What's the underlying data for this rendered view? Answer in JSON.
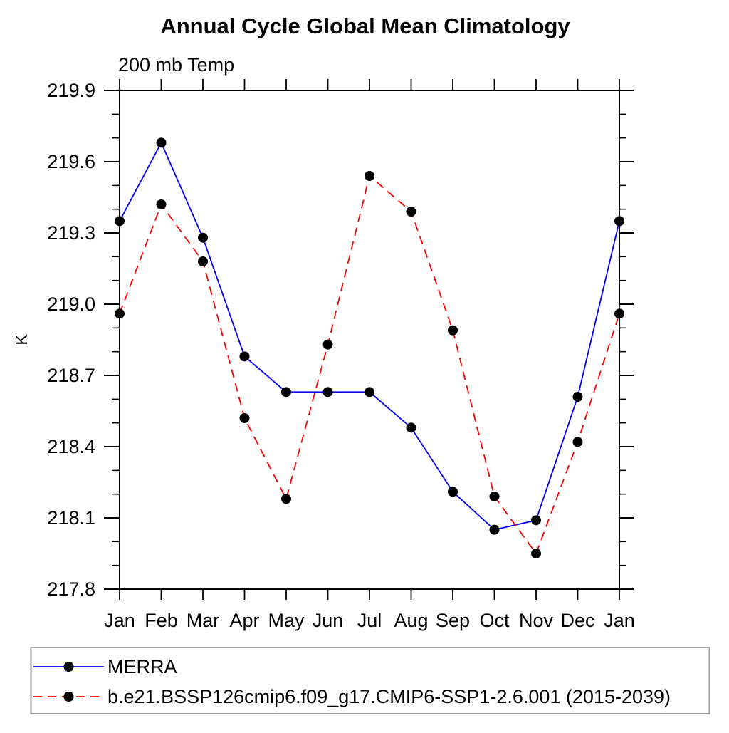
{
  "page": {
    "background": "#ffffff"
  },
  "chart_data": {
    "type": "line",
    "title": "Annual Cycle Global Mean Climatology",
    "subtitle": "200 mb Temp",
    "xlabel": "",
    "ylabel": "K",
    "categories": [
      "Jan",
      "Feb",
      "Mar",
      "Apr",
      "May",
      "Jun",
      "Jul",
      "Aug",
      "Sep",
      "Oct",
      "Nov",
      "Dec",
      "Jan"
    ],
    "series": [
      {
        "name": "MERRA",
        "color": "#0000ff",
        "line_style": "solid",
        "marker": "filled-circle",
        "marker_color": "#000000",
        "values": [
          219.35,
          219.68,
          219.28,
          218.78,
          218.63,
          218.63,
          218.63,
          218.48,
          218.21,
          218.05,
          218.09,
          218.61,
          219.35
        ]
      },
      {
        "name": "b.e21.BSSP126cmip6.f09_g17.CMIP6-SSP1-2.6.001 (2015-2039)",
        "color": "#ff0000",
        "line_style": "dashed",
        "marker": "filled-circle",
        "marker_color": "#000000",
        "values": [
          218.96,
          219.42,
          219.18,
          218.52,
          218.18,
          218.83,
          219.54,
          219.39,
          218.89,
          218.19,
          217.95,
          218.42,
          218.96
        ]
      }
    ],
    "ylim": [
      217.8,
      219.9
    ],
    "ytick_values": [
      217.8,
      218.1,
      218.4,
      218.7,
      219.0,
      219.3,
      219.6,
      219.9
    ],
    "ytick_labels": [
      "217.8",
      "218.1",
      "218.4",
      "218.7",
      "219.0",
      "219.3",
      "219.6",
      "219.9"
    ],
    "y_minor_step": 0.1,
    "grid": false,
    "frame": true,
    "axis_color": "#000000",
    "legend_position": "bottom-left",
    "legend_border_color": "#9a9a9a"
  }
}
